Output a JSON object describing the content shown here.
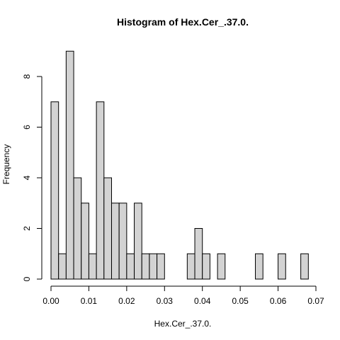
{
  "chart_data": {
    "type": "bar",
    "title": "Histogram of Hex.Cer_.37.0.",
    "xlabel": "Hex.Cer_.37.0.",
    "ylabel": "Frequency",
    "xlim": [
      0.0,
      0.07
    ],
    "ylim": [
      0,
      9
    ],
    "grid": false,
    "legend": "none",
    "bar_fill": "#d3d3d3",
    "bar_stroke": "#000000",
    "x_ticks": [
      {
        "value": 0.0,
        "label": "0.00"
      },
      {
        "value": 0.01,
        "label": "0.01"
      },
      {
        "value": 0.02,
        "label": "0.02"
      },
      {
        "value": 0.03,
        "label": "0.03"
      },
      {
        "value": 0.04,
        "label": "0.04"
      },
      {
        "value": 0.05,
        "label": "0.05"
      },
      {
        "value": 0.06,
        "label": "0.06"
      },
      {
        "value": 0.07,
        "label": "0.07"
      }
    ],
    "y_ticks": [
      {
        "value": 0,
        "label": "0"
      },
      {
        "value": 2,
        "label": "2"
      },
      {
        "value": 4,
        "label": "4"
      },
      {
        "value": 6,
        "label": "6"
      },
      {
        "value": 8,
        "label": "8"
      }
    ],
    "bins": [
      {
        "x0": 0.0,
        "x1": 0.002,
        "count": 7
      },
      {
        "x0": 0.002,
        "x1": 0.004,
        "count": 1
      },
      {
        "x0": 0.004,
        "x1": 0.006,
        "count": 9
      },
      {
        "x0": 0.006,
        "x1": 0.008,
        "count": 4
      },
      {
        "x0": 0.008,
        "x1": 0.01,
        "count": 3
      },
      {
        "x0": 0.01,
        "x1": 0.012,
        "count": 1
      },
      {
        "x0": 0.012,
        "x1": 0.014,
        "count": 7
      },
      {
        "x0": 0.014,
        "x1": 0.016,
        "count": 4
      },
      {
        "x0": 0.016,
        "x1": 0.018,
        "count": 3
      },
      {
        "x0": 0.018,
        "x1": 0.02,
        "count": 3
      },
      {
        "x0": 0.02,
        "x1": 0.022,
        "count": 1
      },
      {
        "x0": 0.022,
        "x1": 0.024,
        "count": 3
      },
      {
        "x0": 0.024,
        "x1": 0.026,
        "count": 1
      },
      {
        "x0": 0.026,
        "x1": 0.028,
        "count": 1
      },
      {
        "x0": 0.028,
        "x1": 0.03,
        "count": 1
      },
      {
        "x0": 0.03,
        "x1": 0.032,
        "count": 0
      },
      {
        "x0": 0.032,
        "x1": 0.034,
        "count": 0
      },
      {
        "x0": 0.034,
        "x1": 0.036,
        "count": 0
      },
      {
        "x0": 0.036,
        "x1": 0.038,
        "count": 1
      },
      {
        "x0": 0.038,
        "x1": 0.04,
        "count": 2
      },
      {
        "x0": 0.04,
        "x1": 0.042,
        "count": 1
      },
      {
        "x0": 0.042,
        "x1": 0.044,
        "count": 0
      },
      {
        "x0": 0.044,
        "x1": 0.046,
        "count": 1
      },
      {
        "x0": 0.046,
        "x1": 0.048,
        "count": 0
      },
      {
        "x0": 0.048,
        "x1": 0.05,
        "count": 0
      },
      {
        "x0": 0.05,
        "x1": 0.052,
        "count": 0
      },
      {
        "x0": 0.052,
        "x1": 0.054,
        "count": 0
      },
      {
        "x0": 0.054,
        "x1": 0.056,
        "count": 1
      },
      {
        "x0": 0.056,
        "x1": 0.058,
        "count": 0
      },
      {
        "x0": 0.058,
        "x1": 0.06,
        "count": 0
      },
      {
        "x0": 0.06,
        "x1": 0.062,
        "count": 1
      },
      {
        "x0": 0.062,
        "x1": 0.064,
        "count": 0
      },
      {
        "x0": 0.064,
        "x1": 0.066,
        "count": 0
      },
      {
        "x0": 0.066,
        "x1": 0.068,
        "count": 1
      }
    ]
  }
}
